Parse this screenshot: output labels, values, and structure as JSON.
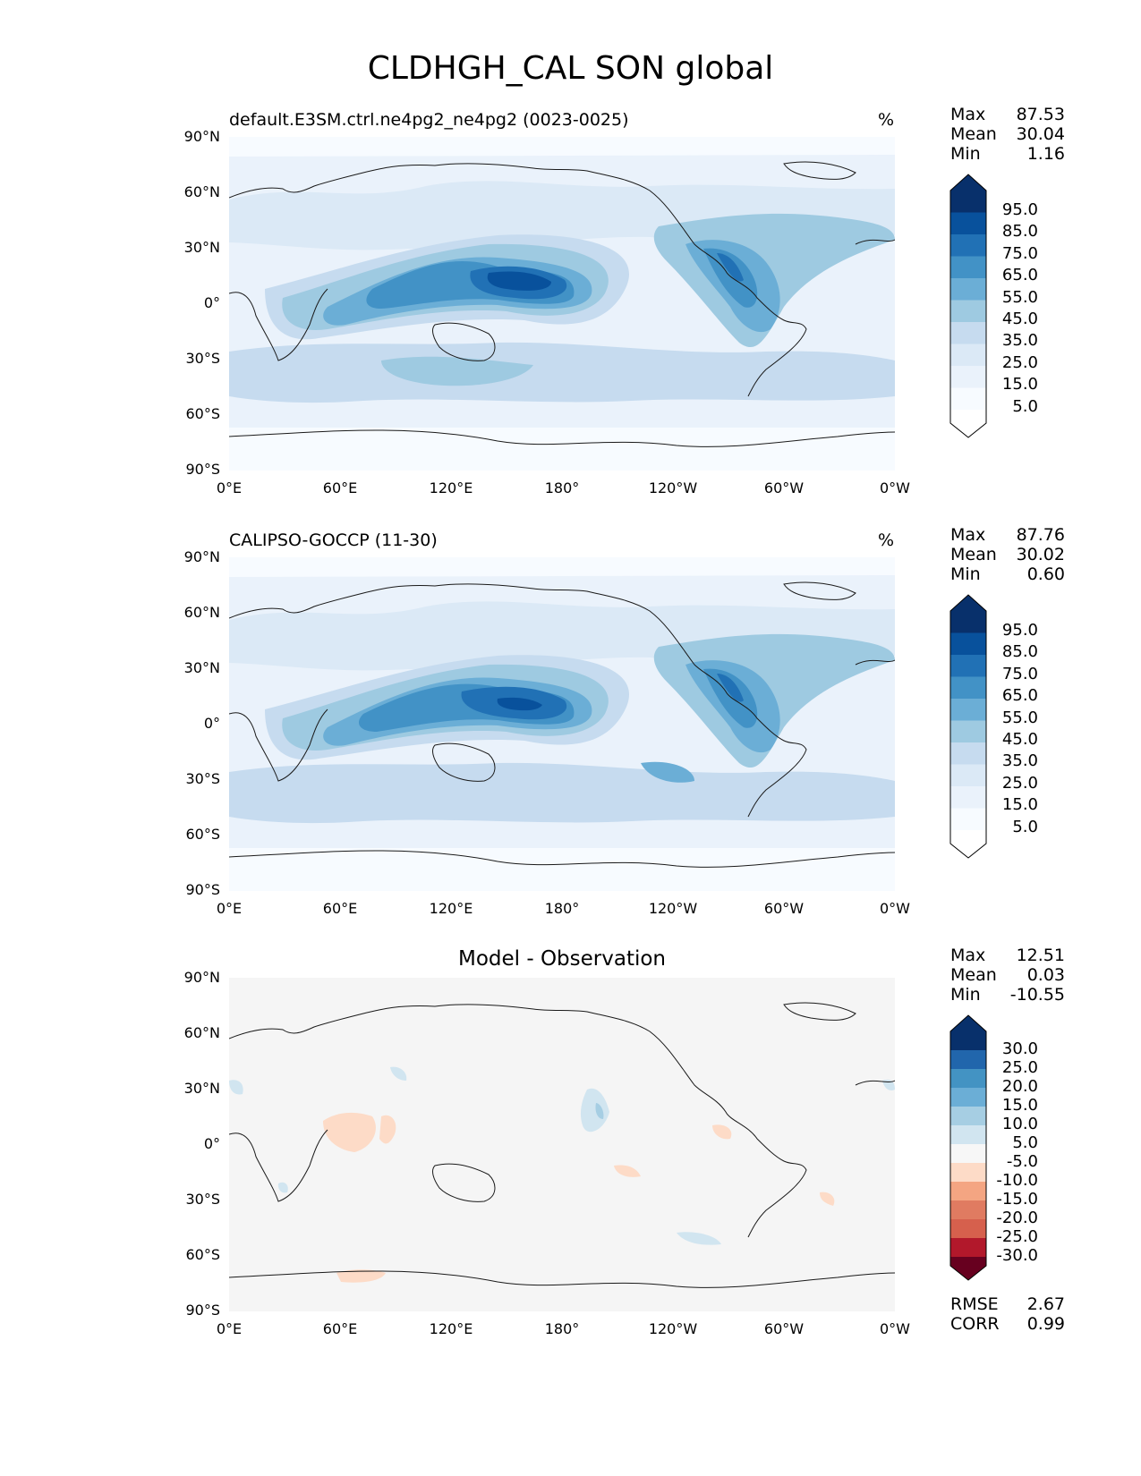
{
  "figure_title": "CLDHGH_CAL SON global",
  "lat_ticks": [
    "90°N",
    "60°N",
    "30°N",
    "0°",
    "30°S",
    "60°S",
    "90°S"
  ],
  "lon_ticks": [
    "0°E",
    "60°E",
    "120°E",
    "180°",
    "120°W",
    "60°W",
    "0°W"
  ],
  "panels": [
    {
      "title": "default.E3SM.ctrl.ne4pg2_ne4pg2 (0023-0025)",
      "units": "%",
      "stats": {
        "max_label": "Max",
        "max": "87.53",
        "mean_label": "Mean",
        "mean": "30.04",
        "min_label": "Min",
        "min": "1.16"
      },
      "colorbar": {
        "labels": [
          "95.0",
          "85.0",
          "75.0",
          "65.0",
          "55.0",
          "45.0",
          "35.0",
          "25.0",
          "15.0",
          "5.0"
        ],
        "colors": [
          "#08306b",
          "#08519c",
          "#2171b5",
          "#4292c6",
          "#6baed6",
          "#9ecae1",
          "#c6dbef",
          "#dbe9f6",
          "#eaf2fb",
          "#f7fbff",
          "#ffffff"
        ]
      }
    },
    {
      "title": "CALIPSO-GOCCP (11-30)",
      "units": "%",
      "stats": {
        "max_label": "Max",
        "max": "87.76",
        "mean_label": "Mean",
        "mean": "30.02",
        "min_label": "Min",
        "min": "0.60"
      },
      "colorbar": {
        "labels": [
          "95.0",
          "85.0",
          "75.0",
          "65.0",
          "55.0",
          "45.0",
          "35.0",
          "25.0",
          "15.0",
          "5.0"
        ],
        "colors": [
          "#08306b",
          "#08519c",
          "#2171b5",
          "#4292c6",
          "#6baed6",
          "#9ecae1",
          "#c6dbef",
          "#dbe9f6",
          "#eaf2fb",
          "#f7fbff",
          "#ffffff"
        ]
      }
    },
    {
      "title": "Model - Observation",
      "units": "",
      "stats": {
        "max_label": "Max",
        "max": "12.51",
        "mean_label": "Mean",
        "mean": "0.03",
        "min_label": "Min",
        "min": "-10.55"
      },
      "colorbar": {
        "labels": [
          "30.0",
          "25.0",
          "20.0",
          "15.0",
          "10.0",
          "5.0",
          "-5.0",
          "-10.0",
          "-15.0",
          "-20.0",
          "-25.0",
          "-30.0"
        ],
        "colors": [
          "#08306b",
          "#2166ac",
          "#4393c3",
          "#6baed6",
          "#a6cee3",
          "#d1e5f0",
          "#f7f7f7",
          "#fddbc7",
          "#f4a582",
          "#e07b61",
          "#d6604d",
          "#b2182b",
          "#67001f"
        ]
      },
      "metrics": {
        "rmse_label": "RMSE",
        "rmse": "2.67",
        "corr_label": "CORR",
        "corr": "0.99"
      }
    }
  ],
  "map_style": {
    "ocean_light": "#eef4fb",
    "diff_background": "#f5f5f5",
    "coast": "#1a1a1a"
  }
}
